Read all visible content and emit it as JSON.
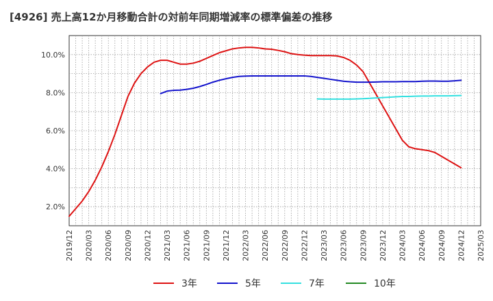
{
  "chart_data": {
    "type": "line",
    "title": "[4926]  売上高12か月移動合計の対前年同期増減率の標準偏差の推移",
    "xlabel": "",
    "ylabel": "",
    "x_tick_labels": [
      "2019/12",
      "2020/03",
      "2020/06",
      "2020/09",
      "2020/12",
      "2021/03",
      "2021/06",
      "2021/09",
      "2021/12",
      "2022/03",
      "2022/06",
      "2022/09",
      "2022/12",
      "2023/03",
      "2023/06",
      "2023/09",
      "2023/12",
      "2024/03",
      "2024/06",
      "2024/09",
      "2024/12",
      "2025/03"
    ],
    "y_ticks": [
      2.0,
      4.0,
      6.0,
      8.0,
      10.0
    ],
    "y_tick_labels": [
      "2.0%",
      "4.0%",
      "6.0%",
      "8.0%",
      "10.0%"
    ],
    "ylim": [
      1.0,
      11.0
    ],
    "xlim_months": [
      0,
      63
    ],
    "grid": true,
    "legend_position": "bottom",
    "series": [
      {
        "name": "3年",
        "color": "#dd1111",
        "x": [
          0,
          1,
          2,
          3,
          4,
          5,
          6,
          7,
          8,
          9,
          10,
          11,
          12,
          13,
          14,
          15,
          16,
          17,
          18,
          19,
          20,
          21,
          22,
          23,
          24,
          25,
          26,
          27,
          28,
          29,
          30,
          31,
          32,
          33,
          34,
          35,
          36,
          37,
          38,
          39,
          40,
          41,
          42,
          43,
          44,
          45,
          46,
          47,
          48,
          49,
          50,
          51,
          52,
          53,
          54,
          55,
          56,
          57,
          58,
          59,
          60
        ],
        "values": [
          1.5,
          1.9,
          2.3,
          2.8,
          3.4,
          4.1,
          4.9,
          5.8,
          6.8,
          7.8,
          8.5,
          9.0,
          9.35,
          9.6,
          9.7,
          9.7,
          9.6,
          9.5,
          9.5,
          9.55,
          9.65,
          9.8,
          9.95,
          10.1,
          10.2,
          10.3,
          10.35,
          10.38,
          10.38,
          10.35,
          10.3,
          10.28,
          10.22,
          10.15,
          10.05,
          10.0,
          9.97,
          9.95,
          9.95,
          9.95,
          9.95,
          9.93,
          9.85,
          9.7,
          9.45,
          9.1,
          8.5,
          7.9,
          7.3,
          6.7,
          6.1,
          5.5,
          5.15,
          5.05,
          5.0,
          4.95,
          4.85,
          4.65,
          4.45,
          4.25,
          4.05
        ]
      },
      {
        "name": "5年",
        "color": "#1111cc",
        "x": [
          14,
          15,
          16,
          17,
          18,
          19,
          20,
          21,
          22,
          23,
          24,
          25,
          26,
          27,
          28,
          29,
          30,
          31,
          32,
          33,
          34,
          35,
          36,
          37,
          38,
          39,
          40,
          41,
          42,
          43,
          44,
          45,
          46,
          47,
          48,
          49,
          50,
          51,
          52,
          53,
          54,
          55,
          56,
          57,
          58,
          59,
          60
        ],
        "values": [
          7.95,
          8.08,
          8.12,
          8.13,
          8.17,
          8.23,
          8.32,
          8.43,
          8.55,
          8.65,
          8.73,
          8.8,
          8.85,
          8.87,
          8.88,
          8.88,
          8.88,
          8.88,
          8.88,
          8.88,
          8.88,
          8.88,
          8.88,
          8.85,
          8.8,
          8.75,
          8.7,
          8.65,
          8.6,
          8.57,
          8.55,
          8.55,
          8.55,
          8.56,
          8.57,
          8.57,
          8.57,
          8.58,
          8.58,
          8.58,
          8.6,
          8.61,
          8.61,
          8.6,
          8.6,
          8.62,
          8.65
        ]
      },
      {
        "name": "7年",
        "color": "#33e0e0",
        "x": [
          38,
          39,
          40,
          41,
          42,
          43,
          44,
          45,
          46,
          47,
          48,
          49,
          50,
          51,
          52,
          53,
          54,
          55,
          56,
          57,
          58,
          59,
          60
        ],
        "values": [
          7.67,
          7.66,
          7.66,
          7.66,
          7.66,
          7.66,
          7.67,
          7.68,
          7.7,
          7.72,
          7.74,
          7.76,
          7.78,
          7.8,
          7.8,
          7.81,
          7.82,
          7.82,
          7.83,
          7.83,
          7.83,
          7.84,
          7.85
        ]
      },
      {
        "name": "10年",
        "color": "#228822",
        "x": [],
        "values": []
      }
    ]
  }
}
